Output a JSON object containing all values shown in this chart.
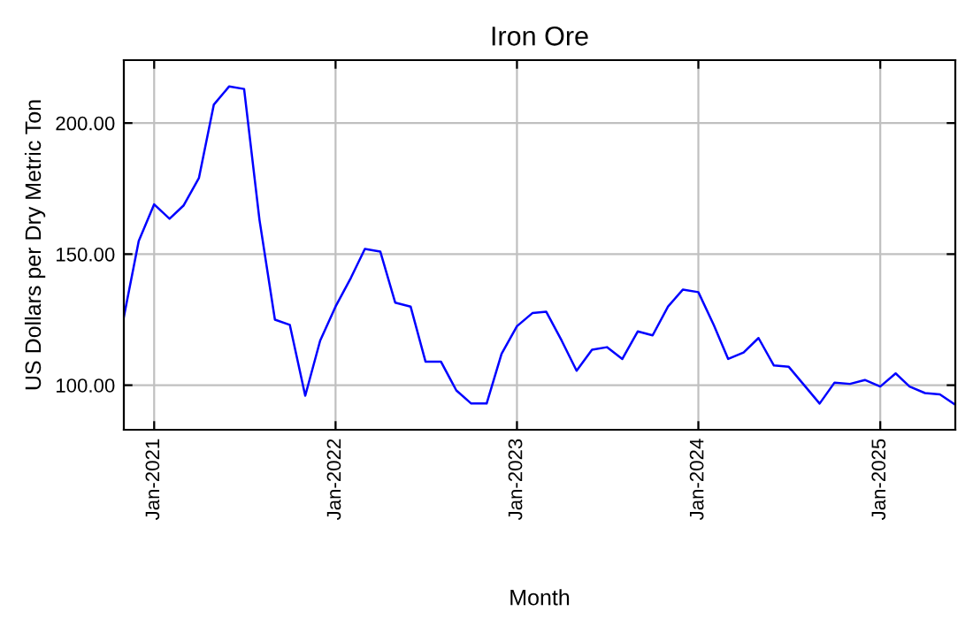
{
  "chart_data": {
    "type": "line",
    "title": "Iron Ore",
    "xlabel": "Month",
    "ylabel": "US Dollars per Dry Metric Ton",
    "x": [
      "2020-11",
      "2020-12",
      "2021-01",
      "2021-02",
      "2021-03",
      "2021-04",
      "2021-05",
      "2021-06",
      "2021-07",
      "2021-08",
      "2021-09",
      "2021-10",
      "2021-11",
      "2021-12",
      "2022-01",
      "2022-02",
      "2022-03",
      "2022-04",
      "2022-05",
      "2022-06",
      "2022-07",
      "2022-08",
      "2022-09",
      "2022-10",
      "2022-11",
      "2022-12",
      "2023-01",
      "2023-02",
      "2023-03",
      "2023-04",
      "2023-05",
      "2023-06",
      "2023-07",
      "2023-08",
      "2023-09",
      "2023-10",
      "2023-11",
      "2023-12",
      "2024-01",
      "2024-02",
      "2024-03",
      "2024-04",
      "2024-05",
      "2024-06",
      "2024-07",
      "2024-08",
      "2024-09",
      "2024-10",
      "2024-11",
      "2024-12",
      "2025-01",
      "2025-02",
      "2025-03",
      "2025-04",
      "2025-05",
      "2025-06"
    ],
    "series": [
      {
        "color": "#0000ff",
        "values": [
          126,
          155,
          169,
          163.5,
          168.5,
          179,
          207,
          214,
          213,
          163,
          125,
          123,
          96,
          117,
          130,
          141,
          152,
          151,
          131.5,
          130,
          109,
          109,
          98,
          93,
          93,
          112,
          122.5,
          127.5,
          128,
          117,
          105.5,
          113.5,
          114.5,
          110,
          120.5,
          119,
          130,
          136.5,
          135.5,
          123,
          110,
          112.5,
          118,
          107.5,
          107,
          100,
          93,
          101,
          100.5,
          102,
          99.5,
          104.5,
          99.5,
          97,
          96.5,
          92.5
        ]
      }
    ],
    "xlim": [
      "2020-11",
      "2025-06"
    ],
    "xticks": [
      {
        "value": "2021-01",
        "label": "Jan-2021"
      },
      {
        "value": "2022-01",
        "label": "Jan-2022"
      },
      {
        "value": "2023-01",
        "label": "Jan-2023"
      },
      {
        "value": "2024-01",
        "label": "Jan-2024"
      },
      {
        "value": "2025-01",
        "label": "Jan-2025"
      }
    ],
    "ylim": [
      83,
      224
    ],
    "yticks": [
      {
        "value": 100,
        "label": "100.00"
      },
      {
        "value": 150,
        "label": "150.00"
      },
      {
        "value": 200,
        "label": "200.00"
      }
    ],
    "grid": true,
    "legend": false,
    "marker": "none",
    "line_style": "solid"
  }
}
